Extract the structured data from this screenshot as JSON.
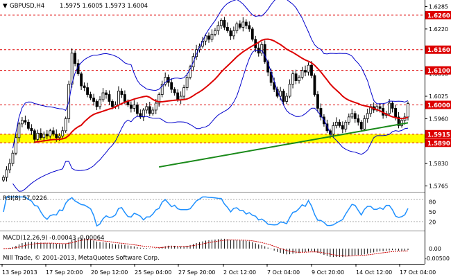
{
  "header": {
    "symbol": "GBPUSD,H4",
    "ohlc": "1.5975 1.6005 1.5973 1.6004"
  },
  "price_axis": {
    "ticks": [
      "1.6285",
      "1.6220",
      "1.6155",
      "1.6090",
      "1.6025",
      "1.5960",
      "1.5895",
      "1.5830",
      "1.5765"
    ]
  },
  "levels": [
    {
      "label": "1.6260",
      "value": 1.626,
      "color": "#dd0000"
    },
    {
      "label": "1.6160",
      "value": 1.616,
      "color": "#dd0000"
    },
    {
      "label": "1.6100",
      "value": 1.61,
      "color": "#dd0000"
    },
    {
      "label": "1.6000",
      "value": 1.6,
      "color": "#dd0000"
    },
    {
      "label": "1.5915",
      "value": 1.5915,
      "color": "#dd0000"
    },
    {
      "label": "1.5890",
      "value": 1.589,
      "color": "#dd0000"
    }
  ],
  "support_zone": {
    "from": 1.589,
    "to": 1.5915,
    "color": "#ffff00"
  },
  "rsi": {
    "label": "RSI(8) 57.0226",
    "ticks": [
      "80",
      "50",
      "20"
    ]
  },
  "macd": {
    "label": "MACD(12,26,9) -0.00043 -0.00064",
    "ticks": [
      "0.00",
      "-0.00500"
    ]
  },
  "copyright": "Mill Trade, © 2001-2013, MetaQuotes Software Corp.",
  "time_axis": {
    "labels": [
      "13 Sep 2013",
      "17 Sep 20:00",
      "20 Sep 12:00",
      "25 Sep 04:00",
      "27 Sep 20:00",
      "2 Oct 12:00",
      "7 Oct 04:00",
      "9 Oct 20:00",
      "14 Oct 12:00",
      "17 Oct 04:00"
    ]
  },
  "colors": {
    "candle": "#000000",
    "bollinger": "#0000cc",
    "ma_fast": "#dd0000",
    "ma_slow": "#1a8a1a",
    "rsi_line": "#1e90ff",
    "macd_signal": "#cc0000",
    "macd_hist": "#000000"
  },
  "chart_data": {
    "type": "candlestick",
    "y_range": [
      1.575,
      1.63
    ],
    "closes": [
      1.579,
      1.5812,
      1.583,
      1.586,
      1.5905,
      1.5945,
      1.5955,
      1.595,
      1.5932,
      1.5925,
      1.59,
      1.5918,
      1.5905,
      1.5915,
      1.591,
      1.5925,
      1.5915,
      1.5905,
      1.591,
      1.5925,
      1.596,
      1.606,
      1.615,
      1.612,
      1.609,
      1.6055,
      1.605,
      1.603,
      1.602,
      1.601,
      1.5995,
      1.6015,
      1.6035,
      1.603,
      1.601,
      1.5995,
      1.6,
      1.604,
      1.603,
      1.601,
      1.6,
      1.599,
      1.6,
      1.5975,
      1.5965,
      1.5985,
      1.5995,
      1.5975,
      1.5985,
      1.6005,
      1.603,
      1.606,
      1.608,
      1.6065,
      1.6045,
      1.6035,
      1.6015,
      1.6025,
      1.605,
      1.608,
      1.611,
      1.614,
      1.616,
      1.617,
      1.6185,
      1.62,
      1.619,
      1.6205,
      1.6215,
      1.623,
      1.6245,
      1.6225,
      1.6215,
      1.62,
      1.6215,
      1.6235,
      1.6225,
      1.624,
      1.623,
      1.622,
      1.619,
      1.6165,
      1.615,
      1.6175,
      1.6125,
      1.6095,
      1.6065,
      1.6045,
      1.6025,
      1.604,
      1.601,
      1.6025,
      1.606,
      1.609,
      1.607,
      1.608,
      1.61,
      1.6095,
      1.6115,
      1.6085,
      1.603,
      1.599,
      1.5965,
      1.5945,
      1.5925,
      1.5915,
      1.594,
      1.595,
      1.594,
      1.593,
      1.595,
      1.5965,
      1.5975,
      1.596,
      1.595,
      1.593,
      1.596,
      1.5975,
      1.5995,
      1.5985,
      1.5995,
      1.599,
      1.597,
      1.5975,
      1.6005,
      1.599,
      1.5965,
      1.594,
      1.5955,
      1.5965,
      1.6004
    ]
  }
}
